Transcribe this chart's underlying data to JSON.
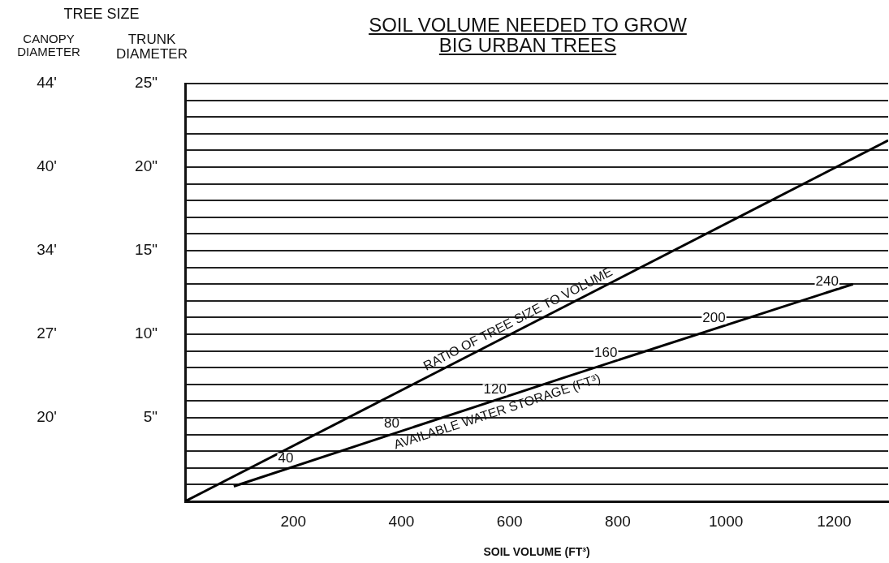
{
  "chart_data": {
    "type": "line",
    "title": "SOIL VOLUME NEEDED TO GROW\nBIG URBAN TREES",
    "xlabel": "SOIL VOLUME (FT³)",
    "ylabel": "TRUNK DIAMETER",
    "y2label": "CANOPY DIAMETER",
    "xlim": [
      0,
      1300
    ],
    "xticks": [
      200,
      400,
      600,
      800,
      1000,
      1200
    ],
    "ylim": [
      0,
      25
    ],
    "yticks": [
      {
        "value": 1,
        "label": null
      },
      {
        "value": 2,
        "label": null
      },
      {
        "value": 3,
        "label": null
      },
      {
        "value": 4,
        "label": null
      },
      {
        "value": 5,
        "label": "5\""
      },
      {
        "value": 6,
        "label": null
      },
      {
        "value": 7,
        "label": null
      },
      {
        "value": 8,
        "label": null
      },
      {
        "value": 9,
        "label": null
      },
      {
        "value": 10,
        "label": "10\""
      },
      {
        "value": 11,
        "label": null
      },
      {
        "value": 12,
        "label": null
      },
      {
        "value": 13,
        "label": null
      },
      {
        "value": 14,
        "label": null
      },
      {
        "value": 15,
        "label": "15\""
      },
      {
        "value": 16,
        "label": null
      },
      {
        "value": 17,
        "label": null
      },
      {
        "value": 18,
        "label": null
      },
      {
        "value": 19,
        "label": null
      },
      {
        "value": 20,
        "label": "20\""
      },
      {
        "value": 21,
        "label": null
      },
      {
        "value": 22,
        "label": null
      },
      {
        "value": 23,
        "label": null
      },
      {
        "value": 24,
        "label": null
      },
      {
        "value": 25,
        "label": "25\""
      }
    ],
    "y2_categories": [
      "44'",
      "40'",
      "34'",
      "27'",
      "20'",
      null
    ],
    "grid": "y",
    "legend": false,
    "marker": "none",
    "line_style": "solid",
    "series": [
      {
        "name": "RATIO OF TREE SIZE TO VOLUME",
        "color": "#000000",
        "x": [
          0,
          1300
        ],
        "values": [
          0,
          21.6
        ]
      },
      {
        "name": "AVAILABLE WATER STORAGE (FT³)",
        "color": "#000000",
        "x": [
          90,
          700,
          1235
        ],
        "values": [
          0.9,
          7.4,
          13
        ]
      }
    ],
    "annotations": [
      "TREE SIZE",
      {
        "text": "40",
        "x": 186,
        "y": 1.92
      },
      {
        "text": "80",
        "x": 382,
        "y": 4.01
      },
      {
        "text": "120",
        "x": 573,
        "y": 6.05
      },
      {
        "text": "160",
        "x": 778,
        "y": 8.22
      },
      {
        "text": "200",
        "x": 978,
        "y": 10.31
      },
      {
        "text": "240",
        "x": 1187,
        "y": 12.5
      }
    ]
  }
}
